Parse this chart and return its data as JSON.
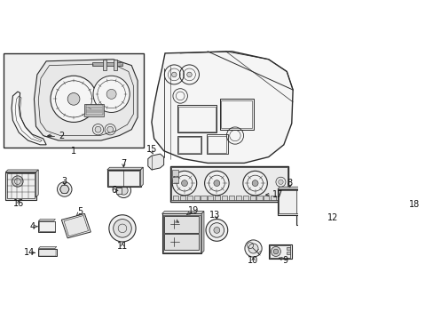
{
  "background_color": "#ffffff",
  "line_color": "#2a2a2a",
  "label_color": "#111111",
  "fig_width": 4.89,
  "fig_height": 3.6,
  "dpi": 100
}
